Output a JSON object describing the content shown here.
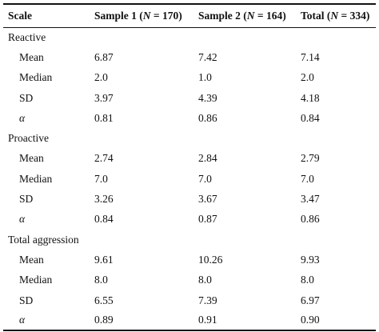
{
  "table": {
    "headers": [
      {
        "prefix": "Scale",
        "n_var": "",
        "suffix": ""
      },
      {
        "prefix": "Sample 1 (",
        "n_var": "N",
        "suffix": " = 170)"
      },
      {
        "prefix": "Sample 2 (",
        "n_var": "N",
        "suffix": " = 164)"
      },
      {
        "prefix": "Total (",
        "n_var": "N",
        "suffix": " = 334)"
      }
    ],
    "sections": [
      {
        "label": "Reactive",
        "rows": [
          {
            "stat": "Mean",
            "s1": "6.87",
            "s2": "7.42",
            "total": "7.14"
          },
          {
            "stat": "Median",
            "s1": "2.0",
            "s2": "1.0",
            "total": "2.0"
          },
          {
            "stat": "SD",
            "s1": "3.97",
            "s2": "4.39",
            "total": "4.18"
          },
          {
            "stat": "α",
            "s1": "0.81",
            "s2": "0.86",
            "total": "0.84"
          }
        ]
      },
      {
        "label": "Proactive",
        "rows": [
          {
            "stat": "Mean",
            "s1": "2.74",
            "s2": "2.84",
            "total": "2.79"
          },
          {
            "stat": "Median",
            "s1": "7.0",
            "s2": "7.0",
            "total": "7.0"
          },
          {
            "stat": "SD",
            "s1": "3.26",
            "s2": "3.67",
            "total": "3.47"
          },
          {
            "stat": "α",
            "s1": "0.84",
            "s2": "0.87",
            "total": "0.86"
          }
        ]
      },
      {
        "label": "Total aggression",
        "rows": [
          {
            "stat": "Mean",
            "s1": "9.61",
            "s2": "10.26",
            "total": "9.93"
          },
          {
            "stat": "Median",
            "s1": "8.0",
            "s2": "8.0",
            "total": "8.0"
          },
          {
            "stat": "SD",
            "s1": "6.55",
            "s2": "7.39",
            "total": "6.97"
          },
          {
            "stat": "α",
            "s1": "0.89",
            "s2": "0.91",
            "total": "0.90"
          }
        ]
      }
    ]
  }
}
